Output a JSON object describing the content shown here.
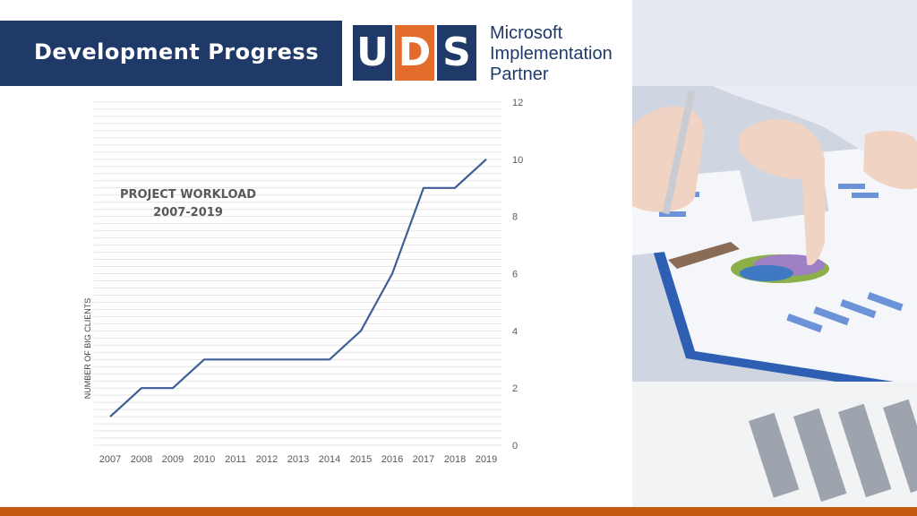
{
  "header": {
    "title": "Development Progress"
  },
  "logo": {
    "letters": [
      "U",
      "D",
      "S"
    ],
    "partner_lines": [
      "Microsoft",
      "Implementation",
      "Partner"
    ]
  },
  "colors": {
    "navy": "#1f3a68",
    "orange": "#e36b2c",
    "line": "#3e5f95",
    "bottom_bar": "#c55a11"
  },
  "photo": {
    "subject": "hands reviewing printed charts with a pen"
  },
  "chart_data": {
    "type": "line",
    "title_lines": [
      "PROJECT WORKLOAD",
      "2007-2019"
    ],
    "xlabel": "",
    "ylabel": "NUMBER OF BIG CLIENTS",
    "categories": [
      "2007",
      "2008",
      "2009",
      "2010",
      "2011",
      "2012",
      "2013",
      "2014",
      "2015",
      "2016",
      "2017",
      "2018",
      "2019"
    ],
    "series": [
      {
        "values": [
          1,
          2,
          2,
          3,
          3,
          3,
          3,
          3,
          4,
          6,
          9,
          9,
          10
        ]
      }
    ],
    "ylim": [
      0,
      12
    ],
    "yticks": [
      0,
      2,
      4,
      6,
      8,
      10,
      12
    ],
    "y_axis_side": "right",
    "grid": true
  }
}
